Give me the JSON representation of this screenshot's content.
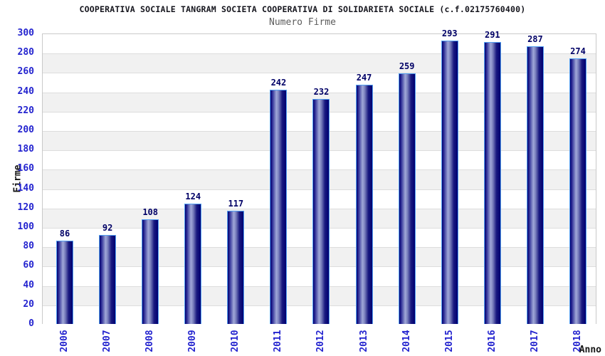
{
  "chart_data": {
    "type": "bar",
    "title": "COOPERATIVA SOCIALE TANGRAM SOCIETA COOPERATIVA DI SOLIDARIETA SOCIALE (c.f.02175760400)",
    "subtitle": "Numero Firme",
    "xlabel": "Anno",
    "ylabel": "Firme",
    "categories": [
      "2006",
      "2007",
      "2008",
      "2009",
      "2010",
      "2011",
      "2012",
      "2013",
      "2014",
      "2015",
      "2016",
      "2017",
      "2018"
    ],
    "values": [
      86,
      92,
      108,
      124,
      117,
      242,
      232,
      247,
      259,
      293,
      291,
      287,
      274
    ],
    "ylim": [
      0,
      300
    ],
    "ytick_step": 20,
    "grid": "horizontal-bands",
    "legend_position": "none",
    "colors": {
      "tick_label": "#2424cf",
      "value_label": "#000066",
      "title": "#15151d",
      "subtitle": "#5c5c5c",
      "axis_title": "#161616",
      "band_alt": "#f1f1f1",
      "gridline": "#dddddd",
      "frame": "#c9c9c9",
      "bar_border": "#54a0f2",
      "bar_dark": "#000070",
      "bar_light": "#a0a8d8"
    }
  }
}
